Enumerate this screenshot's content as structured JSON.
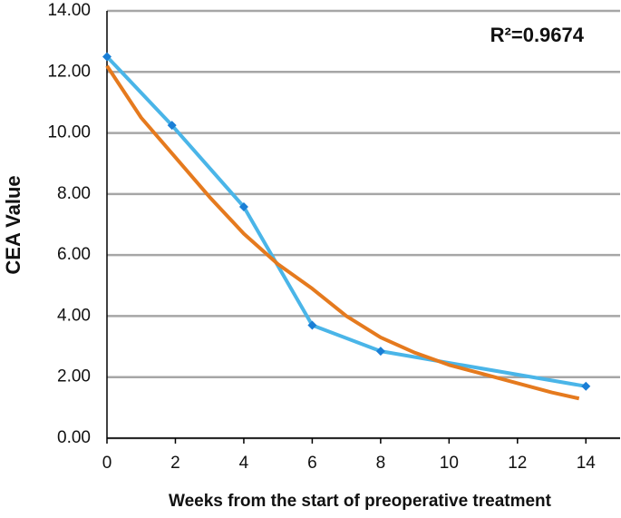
{
  "chart_data": {
    "type": "line",
    "annotation": "R²=0.9674",
    "xlabel": "Weeks from the start of preoperative treatment",
    "ylabel": "CEA Value",
    "series": [
      {
        "color": "#4ab5e8",
        "marker": "diamond",
        "x": [
          0,
          1.9,
          4,
          6,
          8,
          14
        ],
        "values": [
          12.5,
          10.25,
          7.58,
          3.7,
          2.85,
          1.7
        ]
      },
      {
        "color": "#e57a1e",
        "marker": "none",
        "x": [
          0,
          1,
          2,
          3,
          4,
          5,
          6,
          7,
          8,
          9,
          10,
          11,
          12,
          13,
          13.8
        ],
        "values": [
          12.2,
          10.5,
          9.2,
          7.9,
          6.7,
          5.7,
          4.9,
          4.0,
          3.3,
          2.8,
          2.4,
          2.1,
          1.8,
          1.5,
          1.3
        ]
      }
    ],
    "xlim": [
      0,
      15
    ],
    "xticks": [
      0,
      2,
      4,
      6,
      8,
      10,
      12,
      14
    ],
    "ylim": [
      0,
      14
    ],
    "yticks": [
      {
        "value": 0,
        "label": "0.00"
      },
      {
        "value": 2,
        "label": "2.00"
      },
      {
        "value": 4,
        "label": "4.00"
      },
      {
        "value": 6,
        "label": "6.00"
      },
      {
        "value": 8,
        "label": "8.00"
      },
      {
        "value": 10,
        "label": "10.00"
      },
      {
        "value": 12,
        "label": "12.00"
      },
      {
        "value": 14,
        "label": "14.00"
      }
    ],
    "grid": true
  }
}
